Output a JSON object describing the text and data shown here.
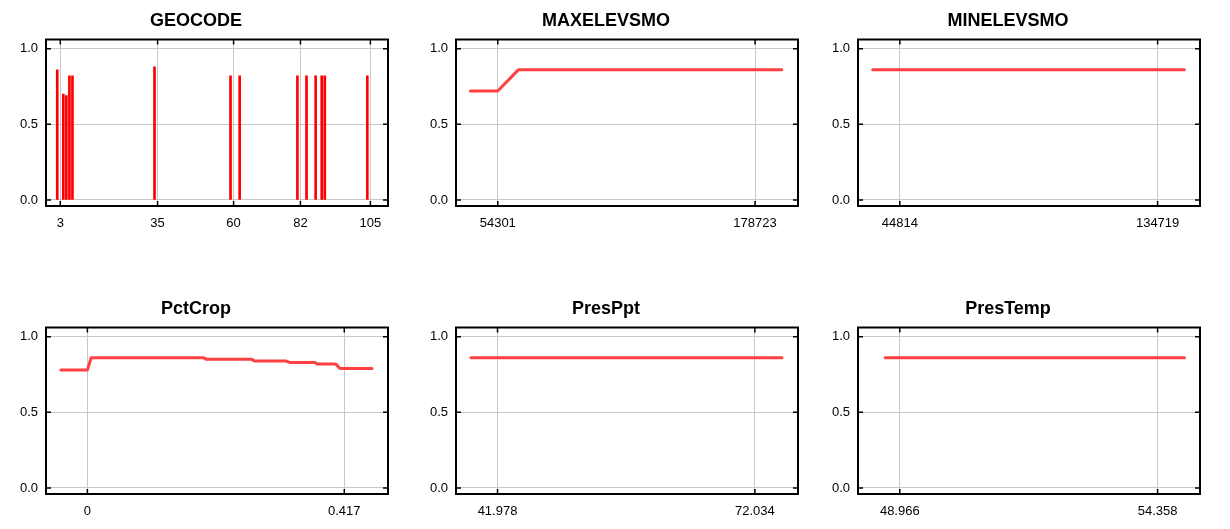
{
  "chart_data": [
    {
      "type": "bar",
      "title": "GEOCODE",
      "x": [
        2,
        4,
        5,
        6,
        7,
        34,
        59,
        62,
        81,
        84,
        87,
        89,
        90,
        104
      ],
      "values": [
        0.86,
        0.7,
        0.69,
        0.82,
        0.82,
        0.88,
        0.82,
        0.82,
        0.82,
        0.82,
        0.82,
        0.82,
        0.82,
        0.82
      ],
      "color": "#ff0000",
      "xlim": [
        -1.7,
        110.8
      ],
      "xticks": [
        3,
        35,
        60,
        82,
        105
      ],
      "ylim": [
        -0.04,
        1.06
      ],
      "yticks": [
        {
          "value": 0,
          "label": "0.0"
        },
        {
          "value": 0.5,
          "label": "0.5"
        },
        {
          "value": 1,
          "label": "1.0"
        }
      ],
      "grid": true
    },
    {
      "type": "line",
      "title": "MAXELEVSMO",
      "x": [
        41050,
        54301,
        64230,
        191630
      ],
      "values": [
        0.72,
        0.72,
        0.86,
        0.86
      ],
      "color": "#ff4040",
      "marker": "none",
      "xlim": [
        34100,
        199500
      ],
      "xticks": [
        54301,
        178723
      ],
      "ylim": [
        -0.04,
        1.06
      ],
      "yticks": [
        {
          "value": 0,
          "label": "0.0"
        },
        {
          "value": 0.5,
          "label": "0.5"
        },
        {
          "value": 1,
          "label": "1.0"
        }
      ],
      "grid": true
    },
    {
      "type": "line",
      "title": "MINELEVSMO",
      "x": [
        35360,
        144030
      ],
      "values": [
        0.86,
        0.86
      ],
      "color": "#ff4040",
      "marker": "none",
      "xlim": [
        30235,
        149500
      ],
      "xticks": [
        44814,
        134719
      ],
      "ylim": [
        -0.04,
        1.06
      ],
      "yticks": [
        {
          "value": 0,
          "label": "0.0"
        },
        {
          "value": 0.5,
          "label": "0.5"
        },
        {
          "value": 1,
          "label": "1.0"
        }
      ],
      "grid": true
    },
    {
      "type": "line",
      "title": "PctCrop",
      "x": [
        -0.043,
        0,
        0.006,
        0.189,
        0.193,
        0.267,
        0.271,
        0.322,
        0.328,
        0.369,
        0.373,
        0.403,
        0.41,
        0.462
      ],
      "values": [
        0.78,
        0.78,
        0.86,
        0.86,
        0.85,
        0.85,
        0.84,
        0.84,
        0.83,
        0.83,
        0.82,
        0.82,
        0.79,
        0.79
      ],
      "color": "#ff4040",
      "marker": "none",
      "xlim": [
        -0.0672,
        0.488
      ],
      "xticks": [
        0,
        0.417
      ],
      "ylim": [
        -0.04,
        1.06
      ],
      "yticks": [
        {
          "value": 0,
          "label": "0.0"
        },
        {
          "value": 0.5,
          "label": "0.5"
        },
        {
          "value": 1,
          "label": "1.0"
        }
      ],
      "grid": true
    },
    {
      "type": "line",
      "title": "PresPpt",
      "x": [
        38.87,
        75.2
      ],
      "values": [
        0.86,
        0.86
      ],
      "color": "#ff4040",
      "marker": "none",
      "xlim": [
        37.13,
        77.07
      ],
      "xticks": [
        41.978,
        72.034
      ],
      "ylim": [
        -0.04,
        1.06
      ],
      "yticks": [
        {
          "value": 0,
          "label": "0.0"
        },
        {
          "value": 0.5,
          "label": "0.5"
        },
        {
          "value": 1,
          "label": "1.0"
        }
      ],
      "grid": true
    },
    {
      "type": "line",
      "title": "PresTemp",
      "x": [
        48.66,
        54.92
      ],
      "values": [
        0.86,
        0.86
      ],
      "color": "#ff4040",
      "marker": "none",
      "xlim": [
        48.092,
        55.245
      ],
      "xticks": [
        48.966,
        54.358
      ],
      "ylim": [
        -0.04,
        1.06
      ],
      "yticks": [
        {
          "value": 0,
          "label": "0.0"
        },
        {
          "value": 0.5,
          "label": "0.5"
        },
        {
          "value": 1,
          "label": "1.0"
        }
      ],
      "grid": true
    }
  ]
}
